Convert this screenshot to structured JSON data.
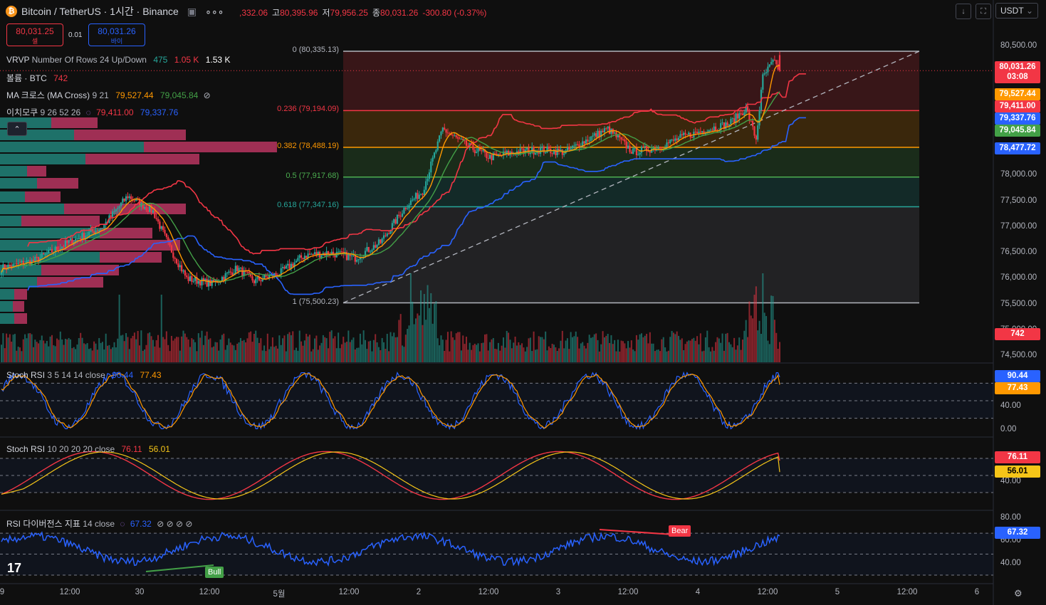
{
  "header": {
    "title": "Bitcoin / TetherUS · 1시간 · Binance",
    "coin_icon": "bitcoin-icon",
    "ohlc": {
      "open_prefix": ",332.06",
      "high_label": "고",
      "high": "80,395.96",
      "low_label": "저",
      "low": "79,956.25",
      "close_label": "종",
      "close": "80,031.26",
      "change": "-300.80 (-0.37%)"
    },
    "currency": "USDT"
  },
  "trade": {
    "sell_price": "80,031.25",
    "sell_label": "셀",
    "spread": "0.01",
    "buy_price": "80,031.26",
    "buy_label": "바이"
  },
  "legends": {
    "vrvp": {
      "name": "VRVP",
      "params": "Number Of Rows 24 Up/Down",
      "v1": "475",
      "v2": "1.05 K",
      "v3": "1.53 K"
    },
    "volume": {
      "name": "볼륨 · BTC",
      "value": "742"
    },
    "ma": {
      "name": "MA 크로스 (MA Cross)",
      "params": "9 21",
      "v1": "79,527.44",
      "v2": "79,045.84"
    },
    "ichimoku": {
      "name": "이치모쿠",
      "params": "9 26 52 26",
      "v1": "79,411.00",
      "v2": "79,337.76"
    },
    "stoch1": {
      "name": "Stoch RSI",
      "params": "3 5 14 14 close",
      "v1": "90.44",
      "v2": "77.43"
    },
    "stoch2": {
      "name": "Stoch RSI",
      "params": "10 20 20 20 close",
      "v1": "76.11",
      "v2": "56.01"
    },
    "rsidiv": {
      "name": "RSI 다이버전스 지표",
      "params": "14 close",
      "v1": "67.32"
    }
  },
  "price_axis": [
    "80,500.00",
    "78,000.00",
    "77,500.00",
    "77,000.00",
    "76,500.00",
    "76,000.00",
    "75,500.00",
    "75,000.00",
    "74,500.00"
  ],
  "price_tags": [
    {
      "text": "80,031.26",
      "sub": "03:08",
      "color": "#f23645"
    },
    {
      "text": "79,527.44",
      "color": "#ff9800"
    },
    {
      "text": "79,411.00",
      "color": "#f23645"
    },
    {
      "text": "79,337.76",
      "color": "#2962ff"
    },
    {
      "text": "79,045.84",
      "color": "#43a047"
    },
    {
      "text": "78,477.72",
      "color": "#2962ff"
    },
    {
      "text": "742",
      "color": "#f23645"
    }
  ],
  "osc_axis": {
    "stoch1": [
      "40.00",
      "0.00"
    ],
    "stoch1_tags": [
      "90.44",
      "77.43"
    ],
    "stoch2": [
      "40.00"
    ],
    "stoch2_tags": [
      "76.11",
      "56.01"
    ],
    "rsi": [
      "80.00",
      "60.00",
      "40.00"
    ],
    "rsi_tag": "67.32"
  },
  "fib_levels": [
    {
      "label": "0 (80,335.13)",
      "value": 80335.13,
      "color": "#b2b5be"
    },
    {
      "label": "0.236 (79,194.09)",
      "value": 79194.09,
      "color": "#f23645"
    },
    {
      "label": "0.382 (78,488.19)",
      "value": 78488.19,
      "color": "#ff9800"
    },
    {
      "label": "0.5 (77,917.68)",
      "value": 77917.68,
      "color": "#4caf50"
    },
    {
      "label": "0.618 (77,347.16)",
      "value": 77347.16,
      "color": "#26a69a"
    },
    {
      "label": "1 (75,500.23)",
      "value": 75500.23,
      "color": "#b2b5be"
    }
  ],
  "x_axis": [
    "9",
    "12:00",
    "30",
    "12:00",
    "5월",
    "12:00",
    "2",
    "12:00",
    "3",
    "12:00",
    "4",
    "12:00",
    "5",
    "12:00",
    "6"
  ],
  "signals": {
    "bear": "Bear",
    "bull": "Bull"
  },
  "chart_data": {
    "type": "candlestick",
    "timeframe": "1h",
    "y_range": [
      74500,
      80600
    ],
    "anchors": [
      [
        0,
        76200
      ],
      [
        20,
        76350
      ],
      [
        40,
        76700
      ],
      [
        60,
        77000
      ],
      [
        75,
        77600
      ],
      [
        90,
        77300
      ],
      [
        100,
        76600
      ],
      [
        110,
        76000
      ],
      [
        125,
        75900
      ],
      [
        140,
        76200
      ],
      [
        150,
        75950
      ],
      [
        165,
        76100
      ],
      [
        180,
        76450
      ],
      [
        195,
        76500
      ],
      [
        210,
        76400
      ],
      [
        225,
        76700
      ],
      [
        240,
        77400
      ],
      [
        250,
        77700
      ],
      [
        262,
        78900
      ],
      [
        275,
        78600
      ],
      [
        290,
        78350
      ],
      [
        305,
        78450
      ],
      [
        320,
        78500
      ],
      [
        335,
        78450
      ],
      [
        348,
        78700
      ],
      [
        360,
        78900
      ],
      [
        375,
        78450
      ],
      [
        390,
        78550
      ],
      [
        405,
        78750
      ],
      [
        420,
        78900
      ],
      [
        432,
        79000
      ],
      [
        442,
        79300
      ],
      [
        448,
        78700
      ],
      [
        452,
        79900
      ],
      [
        458,
        80200
      ],
      [
        462,
        80050
      ]
    ],
    "volume_range": [
      0,
      9000
    ],
    "stoch1": {
      "k_last": 90.44,
      "d_last": 77.43,
      "range": [
        0,
        100
      ]
    },
    "stoch2": {
      "k_last": 76.11,
      "d_last": 56.01,
      "range": [
        0,
        100
      ]
    },
    "rsi": {
      "last": 67.32,
      "range": [
        30,
        85
      ]
    }
  }
}
